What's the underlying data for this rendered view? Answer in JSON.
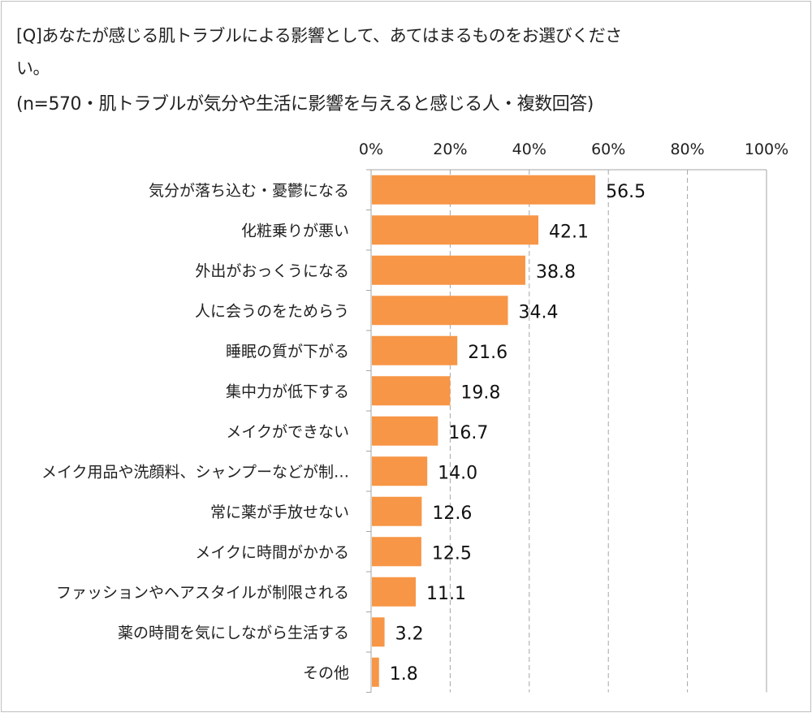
{
  "title_line1": "[Q]あなたが感じる肌トラブルによる影響として、あてはまるものをお選びくださ",
  "title_line2": "い。",
  "subtitle": "(n=570・肌トラブルが気分や生活に影響を与えると感じる人・複数回答)",
  "chart_data": {
    "type": "bar",
    "orientation": "horizontal",
    "categories": [
      "気分が落ち込む・憂鬱になる",
      "化粧乗りが悪い",
      "外出がおっくうになる",
      "人に会うのをためらう",
      "睡眠の質が下がる",
      "集中力が低下する",
      "メイクができない",
      "メイク用品や洗顔料、シャンプーなどが制…",
      "常に薬が手放せない",
      "メイクに時間がかかる",
      "ファッションやヘアスタイルが制限される",
      "薬の時間を気にしながら生活する",
      "その他"
    ],
    "values": [
      56.5,
      42.1,
      38.8,
      34.4,
      21.6,
      19.8,
      16.7,
      14.0,
      12.6,
      12.5,
      11.1,
      3.2,
      1.8
    ],
    "value_labels": [
      "56.5",
      "42.1",
      "38.8",
      "34.4",
      "21.6",
      "19.8",
      "16.7",
      "14.0",
      "12.6",
      "12.5",
      "11.1",
      "3.2",
      "1.8"
    ],
    "xlim": [
      0,
      100
    ],
    "xticks": [
      "0%",
      "20%",
      "40%",
      "60%",
      "80%",
      "100%"
    ],
    "grid": true,
    "bar_color": "#f79646"
  }
}
